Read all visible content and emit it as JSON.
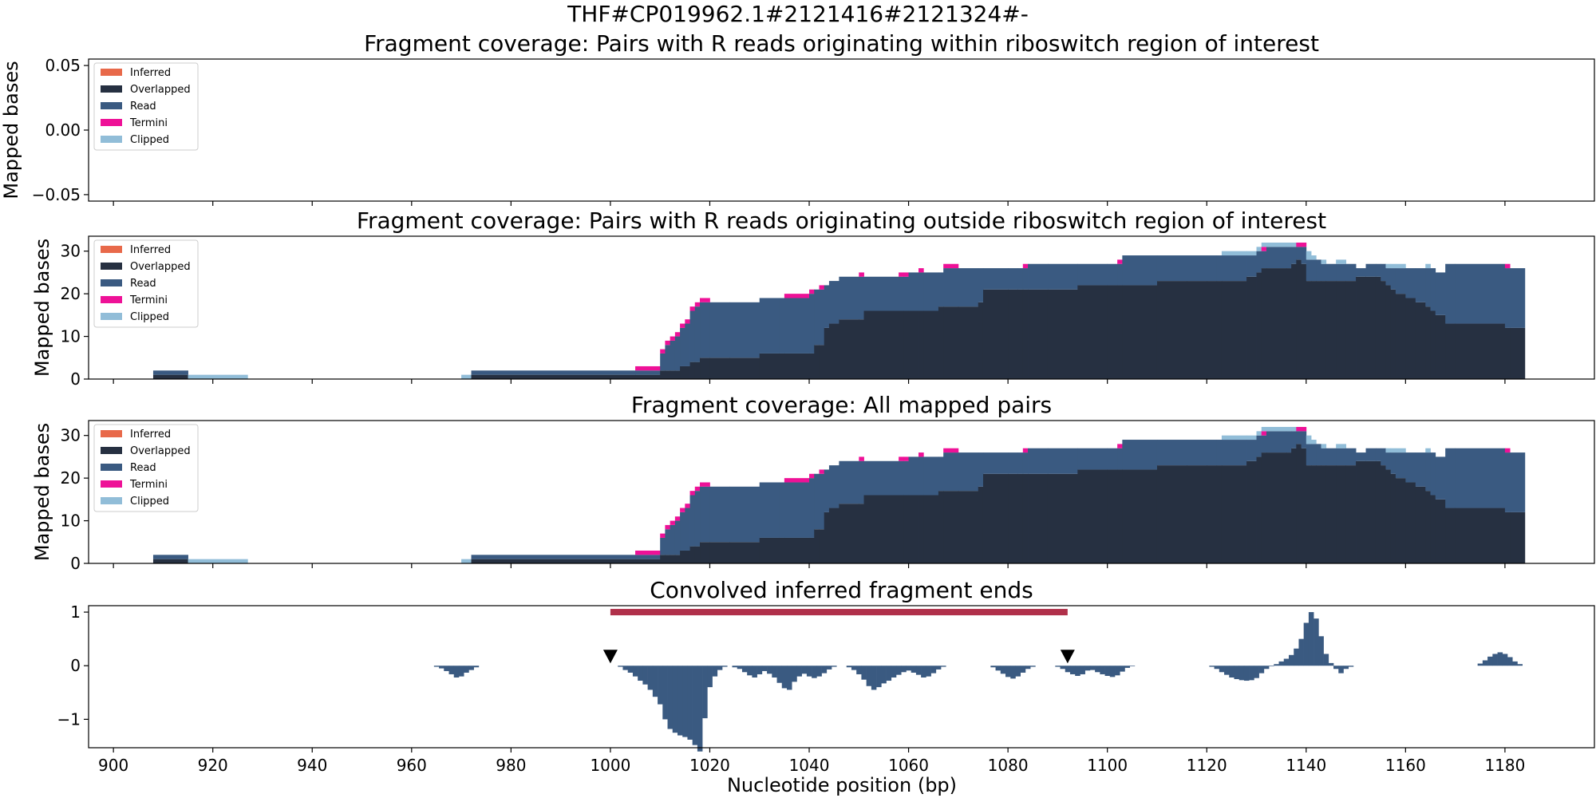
{
  "figure": {
    "suptitle": "THF#CP019962.1#2121416#2121324#-",
    "xlabel": "Nucleotide position (bp)"
  },
  "legend": {
    "entries": [
      {
        "name": "Inferred",
        "color": "#e8694a"
      },
      {
        "name": "Overlapped",
        "color": "#263041"
      },
      {
        "name": "Read",
        "color": "#3a5a81"
      },
      {
        "name": "Termini",
        "color": "#ee1197"
      },
      {
        "name": "Clipped",
        "color": "#91bdd8"
      }
    ]
  },
  "chart_data": [
    {
      "type": "area",
      "title": "Fragment coverage: Pairs with R reads originating within riboswitch region of interest",
      "ylabel": "Mapped bases",
      "xlim": [
        895,
        1198
      ],
      "ylim": [
        -0.055,
        0.055
      ],
      "yticks": [
        "0.05",
        "0.00",
        "−0.05"
      ],
      "ytick_values": [
        0.05,
        0,
        -0.05
      ],
      "legend_position": "upper-left",
      "series": []
    },
    {
      "type": "area",
      "title": "Fragment coverage: Pairs with R reads originating outside riboswitch region of interest",
      "ylabel": "Mapped bases",
      "xlim": [
        895,
        1198
      ],
      "ylim": [
        0,
        33.5
      ],
      "yticks": [
        "0",
        "10",
        "20",
        "30"
      ],
      "ytick_values": [
        0,
        10,
        20,
        30
      ],
      "legend_position": "upper-left",
      "steps": [
        [
          908,
          1,
          0,
          1,
          0,
          0
        ],
        [
          915,
          0,
          0,
          0,
          0,
          1
        ],
        [
          927,
          0,
          0,
          0,
          0,
          0
        ],
        [
          970,
          0,
          0,
          0,
          0,
          1
        ],
        [
          972,
          1,
          0,
          1,
          0,
          0
        ],
        [
          1005,
          1,
          0,
          1,
          1,
          0
        ],
        [
          1010,
          2,
          0,
          4,
          1,
          0
        ],
        [
          1011,
          2,
          0,
          6,
          1,
          0
        ],
        [
          1012,
          2,
          0,
          7,
          1,
          0
        ],
        [
          1013,
          2,
          0,
          8,
          1,
          0
        ],
        [
          1014,
          3,
          0,
          9,
          1,
          0
        ],
        [
          1015,
          3,
          0,
          10,
          1,
          0
        ],
        [
          1016,
          4,
          0,
          12,
          1,
          0
        ],
        [
          1017,
          4,
          0,
          13,
          1,
          0
        ],
        [
          1018,
          5,
          0,
          13,
          1,
          0
        ],
        [
          1020,
          5,
          0,
          13,
          0,
          0
        ],
        [
          1024,
          5,
          0,
          13,
          0,
          0
        ],
        [
          1030,
          6,
          0,
          13,
          0,
          0
        ],
        [
          1034,
          6,
          0,
          13,
          0,
          0
        ],
        [
          1035,
          6,
          0,
          13,
          1,
          0
        ],
        [
          1040,
          6,
          0,
          14,
          1,
          0
        ],
        [
          1041,
          8,
          0,
          13,
          0,
          0
        ],
        [
          1042,
          8,
          0,
          13,
          1,
          0
        ],
        [
          1043,
          12,
          0,
          10,
          0,
          0
        ],
        [
          1044,
          13,
          0,
          10,
          0,
          0
        ],
        [
          1046,
          14,
          0,
          10,
          0,
          0
        ],
        [
          1050,
          14,
          0,
          10,
          1,
          0
        ],
        [
          1051,
          16,
          0,
          8,
          0,
          0
        ],
        [
          1058,
          16,
          0,
          8,
          1,
          0
        ],
        [
          1059,
          16,
          0,
          8,
          1,
          0
        ],
        [
          1060,
          16,
          0,
          9,
          0,
          0
        ],
        [
          1062,
          16,
          0,
          9,
          1,
          0
        ],
        [
          1063,
          16,
          0,
          9,
          0,
          0
        ],
        [
          1066,
          17,
          0,
          8,
          0,
          0
        ],
        [
          1067,
          17,
          0,
          9,
          1,
          0
        ],
        [
          1070,
          17,
          0,
          9,
          0,
          0
        ],
        [
          1074,
          18,
          0,
          8,
          0,
          0
        ],
        [
          1075,
          21,
          0,
          5,
          0,
          0
        ],
        [
          1080,
          21,
          0,
          5,
          0,
          0
        ],
        [
          1082,
          21,
          0,
          5,
          0,
          0
        ],
        [
          1083,
          21,
          0,
          5,
          1,
          0
        ],
        [
          1084,
          21,
          0,
          6,
          0,
          0
        ],
        [
          1088,
          21,
          0,
          6,
          0,
          0
        ],
        [
          1094,
          22,
          0,
          5,
          0,
          0
        ],
        [
          1100,
          22,
          0,
          5,
          0,
          0
        ],
        [
          1102,
          22,
          0,
          5,
          1,
          0
        ],
        [
          1103,
          22,
          0,
          7,
          0,
          0
        ],
        [
          1110,
          23,
          0,
          6,
          0,
          0
        ],
        [
          1116,
          23,
          0,
          6,
          0,
          0
        ],
        [
          1120,
          23,
          0,
          6,
          0,
          0
        ],
        [
          1122,
          23,
          0,
          6,
          0,
          0
        ],
        [
          1123,
          23,
          0,
          6,
          0,
          1
        ],
        [
          1128,
          24,
          0,
          5,
          0,
          1
        ],
        [
          1130,
          25,
          0,
          5,
          0,
          1
        ],
        [
          1131,
          26,
          0,
          4,
          1,
          1
        ],
        [
          1132,
          26,
          0,
          5,
          0,
          1
        ],
        [
          1136,
          26,
          0,
          5,
          0,
          1
        ],
        [
          1137,
          27,
          0,
          4,
          0,
          1
        ],
        [
          1138,
          28,
          0,
          3,
          1,
          0
        ],
        [
          1139,
          27,
          0,
          4,
          1,
          0
        ],
        [
          1140,
          23,
          0,
          5,
          0,
          2
        ],
        [
          1141,
          23,
          0,
          5,
          0,
          1
        ],
        [
          1142,
          23,
          0,
          5,
          0,
          0
        ],
        [
          1143,
          23,
          0,
          4,
          0,
          1
        ],
        [
          1144,
          23,
          0,
          4,
          0,
          0
        ],
        [
          1146,
          23,
          0,
          4,
          0,
          1
        ],
        [
          1148,
          23,
          0,
          4,
          0,
          0
        ],
        [
          1150,
          24,
          0,
          2,
          0,
          0
        ],
        [
          1152,
          24,
          0,
          3,
          0,
          0
        ],
        [
          1154,
          24,
          0,
          3,
          0,
          0
        ],
        [
          1155,
          23,
          0,
          4,
          0,
          0
        ],
        [
          1156,
          22,
          0,
          4,
          0,
          1
        ],
        [
          1157,
          21,
          0,
          5,
          0,
          1
        ],
        [
          1158,
          20,
          0,
          6,
          0,
          1
        ],
        [
          1160,
          19,
          0,
          7,
          0,
          0
        ],
        [
          1162,
          18,
          0,
          8,
          0,
          0
        ],
        [
          1164,
          17,
          0,
          9,
          0,
          1
        ],
        [
          1165,
          16,
          0,
          10,
          0,
          0
        ],
        [
          1166,
          15,
          0,
          10,
          0,
          0
        ],
        [
          1168,
          13,
          0,
          14,
          0,
          0
        ],
        [
          1170,
          13,
          0,
          14,
          0,
          0
        ],
        [
          1180,
          12,
          0,
          14,
          1,
          0
        ],
        [
          1181,
          12,
          0,
          14,
          0,
          0
        ],
        [
          1184,
          0,
          0,
          0,
          0,
          0
        ]
      ],
      "steps_fields": [
        "start",
        "overlapped",
        "inferred",
        "read",
        "termini",
        "clipped"
      ]
    },
    {
      "type": "area",
      "title": "Fragment coverage: All mapped pairs",
      "ylabel": "Mapped bases",
      "xlim": [
        895,
        1198
      ],
      "ylim": [
        0,
        33.5
      ],
      "yticks": [
        "0",
        "10",
        "20",
        "30"
      ],
      "ytick_values": [
        0,
        10,
        20,
        30
      ],
      "legend_position": "upper-left",
      "same_as_previous_steps": true
    },
    {
      "type": "bar",
      "title": "Convolved inferred fragment ends",
      "xlabel": "Nucleotide position (bp)",
      "xlim": [
        895,
        1198
      ],
      "ylim": [
        -1.53,
        1.12
      ],
      "yticks": [
        "1",
        "0",
        "−1"
      ],
      "ytick_values": [
        1,
        0,
        -1
      ],
      "xticks": [
        "900",
        "920",
        "940",
        "960",
        "980",
        "1000",
        "1020",
        "1040",
        "1060",
        "1080",
        "1100",
        "1120",
        "1140",
        "1160",
        "1180"
      ],
      "xtick_values": [
        900,
        920,
        940,
        960,
        980,
        1000,
        1020,
        1040,
        1060,
        1080,
        1100,
        1120,
        1140,
        1160,
        1180
      ],
      "region_of_interest": {
        "start": 1000,
        "end": 1092,
        "color": "#b0304a"
      },
      "markers": [
        1000,
        1092
      ],
      "bars": [
        [
          965,
          -0.02
        ],
        [
          966,
          -0.05
        ],
        [
          967,
          -0.1
        ],
        [
          968,
          -0.16
        ],
        [
          969,
          -0.22
        ],
        [
          970,
          -0.2
        ],
        [
          971,
          -0.13
        ],
        [
          972,
          -0.08
        ],
        [
          973,
          -0.03
        ],
        [
          1002,
          -0.02
        ],
        [
          1003,
          -0.08
        ],
        [
          1004,
          -0.13
        ],
        [
          1005,
          -0.2
        ],
        [
          1006,
          -0.28
        ],
        [
          1007,
          -0.35
        ],
        [
          1008,
          -0.45
        ],
        [
          1009,
          -0.58
        ],
        [
          1010,
          -0.72
        ],
        [
          1011,
          -1.0
        ],
        [
          1012,
          -1.18
        ],
        [
          1013,
          -1.25
        ],
        [
          1014,
          -1.3
        ],
        [
          1015,
          -1.33
        ],
        [
          1016,
          -1.38
        ],
        [
          1017,
          -1.48
        ],
        [
          1018,
          -1.6
        ],
        [
          1019,
          -0.98
        ],
        [
          1020,
          -0.4
        ],
        [
          1021,
          -0.2
        ],
        [
          1022,
          -0.08
        ],
        [
          1023,
          -0.02
        ],
        [
          1025,
          -0.03
        ],
        [
          1026,
          -0.06
        ],
        [
          1027,
          -0.12
        ],
        [
          1028,
          -0.18
        ],
        [
          1029,
          -0.22
        ],
        [
          1030,
          -0.16
        ],
        [
          1031,
          -0.1
        ],
        [
          1032,
          -0.15
        ],
        [
          1033,
          -0.22
        ],
        [
          1034,
          -0.32
        ],
        [
          1035,
          -0.42
        ],
        [
          1036,
          -0.45
        ],
        [
          1037,
          -0.3
        ],
        [
          1038,
          -0.2
        ],
        [
          1039,
          -0.15
        ],
        [
          1040,
          -0.2
        ],
        [
          1041,
          -0.23
        ],
        [
          1042,
          -0.2
        ],
        [
          1043,
          -0.14
        ],
        [
          1044,
          -0.07
        ],
        [
          1045,
          -0.02
        ],
        [
          1048,
          -0.03
        ],
        [
          1049,
          -0.08
        ],
        [
          1050,
          -0.16
        ],
        [
          1051,
          -0.26
        ],
        [
          1052,
          -0.38
        ],
        [
          1053,
          -0.45
        ],
        [
          1054,
          -0.4
        ],
        [
          1055,
          -0.33
        ],
        [
          1056,
          -0.28
        ],
        [
          1057,
          -0.22
        ],
        [
          1058,
          -0.17
        ],
        [
          1059,
          -0.12
        ],
        [
          1060,
          -0.09
        ],
        [
          1061,
          -0.13
        ],
        [
          1062,
          -0.17
        ],
        [
          1063,
          -0.22
        ],
        [
          1064,
          -0.2
        ],
        [
          1065,
          -0.14
        ],
        [
          1066,
          -0.07
        ],
        [
          1067,
          -0.02
        ],
        [
          1077,
          -0.03
        ],
        [
          1078,
          -0.09
        ],
        [
          1079,
          -0.15
        ],
        [
          1080,
          -0.21
        ],
        [
          1081,
          -0.24
        ],
        [
          1082,
          -0.2
        ],
        [
          1083,
          -0.13
        ],
        [
          1084,
          -0.06
        ],
        [
          1085,
          -0.02
        ],
        [
          1090,
          -0.02
        ],
        [
          1091,
          -0.06
        ],
        [
          1092,
          -0.12
        ],
        [
          1093,
          -0.16
        ],
        [
          1094,
          -0.19
        ],
        [
          1095,
          -0.16
        ],
        [
          1096,
          -0.09
        ],
        [
          1097,
          -0.08
        ],
        [
          1098,
          -0.12
        ],
        [
          1099,
          -0.16
        ],
        [
          1100,
          -0.19
        ],
        [
          1101,
          -0.21
        ],
        [
          1102,
          -0.18
        ],
        [
          1103,
          -0.11
        ],
        [
          1104,
          -0.04
        ],
        [
          1105,
          -0.01
        ],
        [
          1121,
          -0.02
        ],
        [
          1122,
          -0.06
        ],
        [
          1123,
          -0.12
        ],
        [
          1124,
          -0.17
        ],
        [
          1125,
          -0.22
        ],
        [
          1126,
          -0.25
        ],
        [
          1127,
          -0.27
        ],
        [
          1128,
          -0.28
        ],
        [
          1129,
          -0.27
        ],
        [
          1130,
          -0.23
        ],
        [
          1131,
          -0.14
        ],
        [
          1132,
          -0.06
        ],
        [
          1133,
          -0.01
        ],
        [
          1134,
          0.03
        ],
        [
          1135,
          0.08
        ],
        [
          1136,
          0.13
        ],
        [
          1137,
          0.2
        ],
        [
          1138,
          0.32
        ],
        [
          1139,
          0.5
        ],
        [
          1140,
          0.8
        ],
        [
          1141,
          1.0
        ],
        [
          1142,
          0.88
        ],
        [
          1143,
          0.55
        ],
        [
          1144,
          0.22
        ],
        [
          1145,
          0.05
        ],
        [
          1146,
          -0.06
        ],
        [
          1147,
          -0.14
        ],
        [
          1148,
          -0.06
        ],
        [
          1149,
          -0.02
        ],
        [
          1175,
          0.04
        ],
        [
          1176,
          0.1
        ],
        [
          1177,
          0.17
        ],
        [
          1178,
          0.22
        ],
        [
          1179,
          0.25
        ],
        [
          1180,
          0.22
        ],
        [
          1181,
          0.16
        ],
        [
          1182,
          0.08
        ],
        [
          1183,
          0.03
        ]
      ],
      "bar_color": "#3a5a81"
    }
  ]
}
